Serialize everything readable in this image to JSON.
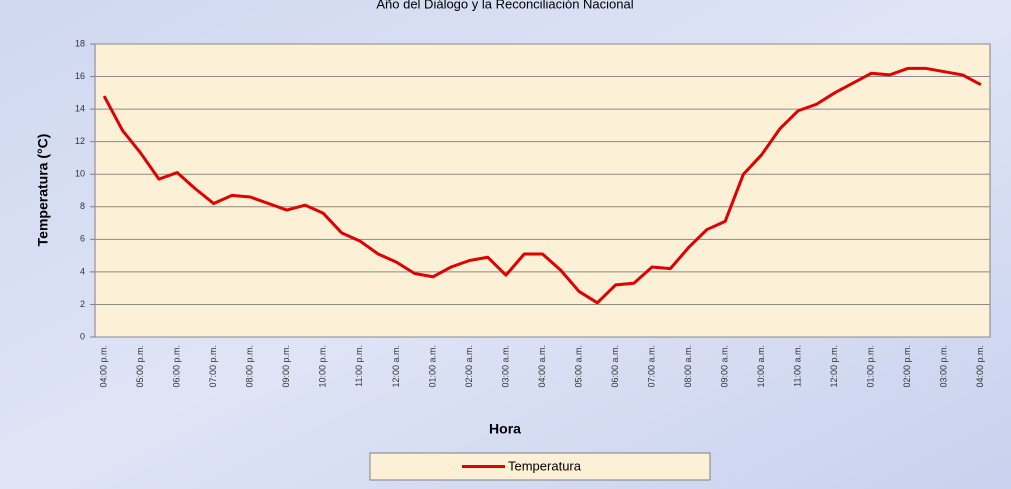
{
  "chart_data": {
    "type": "line",
    "title": "Año del Diálogo y la Reconciliación Nacional",
    "x_label": "Hora",
    "y_label": "Temperatura (°C)",
    "categories": [
      "04:00 p.m.",
      null,
      "05:00 p.m.",
      null,
      "06:00 p.m.",
      null,
      "07:00 p.m.",
      null,
      "08:00 p.m.",
      null,
      "09:00 p.m.",
      null,
      "10:00 p.m.",
      null,
      "11:00 p.m.",
      null,
      "12:00 a.m.",
      null,
      "01:00 a.m.",
      null,
      "02:00 a.m.",
      null,
      "03:00 a.m.",
      null,
      "04:00 a.m.",
      null,
      "05:00 a.m.",
      null,
      "06:00 a.m.",
      null,
      "07:00 a.m.",
      null,
      "08:00 a.m.",
      null,
      "09:00 a.m.",
      null,
      "10:00 a.m.",
      null,
      "11:00 a.m.",
      null,
      "12:00 p.m.",
      null,
      "01:00 p.m.",
      null,
      "02:00 p.m.",
      null,
      "03:00 p.m.",
      null,
      "04:00 p.m."
    ],
    "series": [
      {
        "name": "Temperatura",
        "color": "#e00000",
        "values": [
          14.8,
          12.7,
          11.3,
          9.7,
          10.1,
          9.1,
          8.2,
          8.7,
          8.6,
          8.2,
          7.8,
          8.1,
          7.6,
          6.4,
          5.9,
          5.1,
          4.6,
          3.9,
          3.7,
          4.3,
          4.7,
          4.9,
          3.8,
          5.1,
          5.1,
          4.1,
          2.8,
          2.1,
          3.2,
          3.3,
          4.3,
          4.2,
          5.5,
          6.6,
          7.1,
          10.0,
          11.2,
          12.8,
          13.9,
          14.3,
          15.0,
          15.6,
          16.2,
          16.1,
          16.5,
          16.5,
          16.3,
          16.1,
          15.5
        ]
      }
    ],
    "ylim": [
      0,
      18
    ],
    "yticks": [
      0,
      2,
      4,
      6,
      8,
      10,
      12,
      14,
      16,
      18
    ],
    "grid": true,
    "legend": "bottom"
  }
}
